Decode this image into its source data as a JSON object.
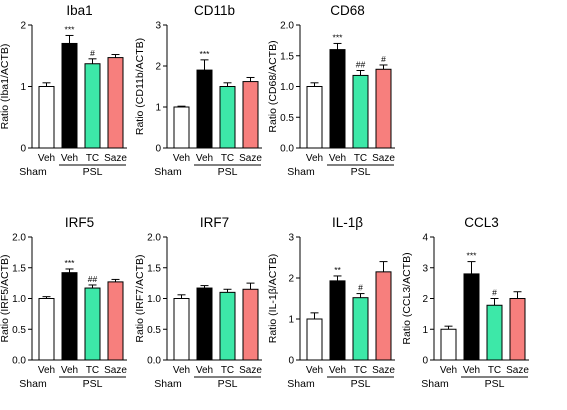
{
  "colors": {
    "Veh_sham": "#ffffff",
    "Veh": "#000000",
    "TC": "#3de8a8",
    "Saze": "#f77f7d",
    "outline": "#000000"
  },
  "chart_data": [
    {
      "type": "bar",
      "title": "Iba1",
      "ylabel": "Ratio (Iba1/ACTB)",
      "categories": [
        "Veh",
        "Veh",
        "TC",
        "Saze"
      ],
      "groups": [
        {
          "label": "Sham",
          "categories": [
            0
          ]
        },
        {
          "label": "PSL",
          "categories": [
            1,
            2,
            3
          ]
        }
      ],
      "values": [
        1.0,
        1.7,
        1.37,
        1.47
      ],
      "errors": [
        0.06,
        0.13,
        0.08,
        0.05
      ],
      "significance": [
        "",
        "***",
        "#",
        ""
      ],
      "ylim": [
        0,
        2
      ],
      "yticks": [
        "0",
        "1",
        "2"
      ],
      "yticks_values": [
        0,
        1,
        2
      ]
    },
    {
      "type": "bar",
      "title": "CD11b",
      "ylabel": "Ratio (CD11b/ACTB)",
      "categories": [
        "Veh",
        "Veh",
        "TC",
        "Saze"
      ],
      "groups": [
        {
          "label": "Sham",
          "categories": [
            0
          ]
        },
        {
          "label": "PSL",
          "categories": [
            1,
            2,
            3
          ]
        }
      ],
      "values": [
        1.0,
        1.9,
        1.5,
        1.62
      ],
      "errors": [
        0.02,
        0.25,
        0.09,
        0.1
      ],
      "significance": [
        "",
        "***",
        "",
        ""
      ],
      "ylim": [
        0,
        3
      ],
      "yticks": [
        "0",
        "1",
        "2",
        "3"
      ],
      "yticks_values": [
        0,
        1,
        2,
        3
      ]
    },
    {
      "type": "bar",
      "title": "CD68",
      "ylabel": "Ratio (CD68/ACTB)",
      "categories": [
        "Veh",
        "Veh",
        "TC",
        "Saze"
      ],
      "groups": [
        {
          "label": "Sham",
          "categories": [
            0
          ]
        },
        {
          "label": "PSL",
          "categories": [
            1,
            2,
            3
          ]
        }
      ],
      "values": [
        1.0,
        1.6,
        1.18,
        1.28
      ],
      "errors": [
        0.06,
        0.1,
        0.08,
        0.07
      ],
      "significance": [
        "",
        "***",
        "##",
        "#"
      ],
      "ylim": [
        0,
        2
      ],
      "yticks": [
        "0.0",
        "0.5",
        "1.0",
        "1.5",
        "2.0"
      ],
      "yticks_values": [
        0,
        0.5,
        1,
        1.5,
        2
      ]
    },
    {
      "type": "bar",
      "title": "IRF5",
      "ylabel": "Ratio (IRF5/ACTB)",
      "categories": [
        "Veh",
        "Veh",
        "TC",
        "Saze"
      ],
      "groups": [
        {
          "label": "Sham",
          "categories": [
            0
          ]
        },
        {
          "label": "PSL",
          "categories": [
            1,
            2,
            3
          ]
        }
      ],
      "values": [
        1.0,
        1.42,
        1.17,
        1.27
      ],
      "errors": [
        0.03,
        0.06,
        0.05,
        0.04
      ],
      "significance": [
        "",
        "***",
        "##",
        ""
      ],
      "ylim": [
        0,
        2
      ],
      "yticks": [
        "0.0",
        "0.5",
        "1.0",
        "1.5",
        "2.0"
      ],
      "yticks_values": [
        0,
        0.5,
        1,
        1.5,
        2
      ]
    },
    {
      "type": "bar",
      "title": "IRF7",
      "ylabel": "Ratio (IRF7/ACTB)",
      "categories": [
        "Veh",
        "Veh",
        "TC",
        "Saze"
      ],
      "groups": [
        {
          "label": "Sham",
          "categories": [
            0
          ]
        },
        {
          "label": "PSL",
          "categories": [
            1,
            2,
            3
          ]
        }
      ],
      "values": [
        1.0,
        1.17,
        1.1,
        1.15
      ],
      "errors": [
        0.06,
        0.04,
        0.05,
        0.1
      ],
      "significance": [
        "",
        "",
        "",
        ""
      ],
      "ylim": [
        0,
        2
      ],
      "yticks": [
        "0.0",
        "0.5",
        "1.0",
        "1.5",
        "2.0"
      ],
      "yticks_values": [
        0,
        0.5,
        1,
        1.5,
        2
      ]
    },
    {
      "type": "bar",
      "title": "IL-1β",
      "ylabel": "Ratio (IL-1β/ACTB)",
      "categories": [
        "Veh",
        "Veh",
        "TC",
        "Saze"
      ],
      "groups": [
        {
          "label": "Sham",
          "categories": [
            0
          ]
        },
        {
          "label": "PSL",
          "categories": [
            1,
            2,
            3
          ]
        }
      ],
      "values": [
        1.0,
        1.93,
        1.52,
        2.15
      ],
      "errors": [
        0.15,
        0.12,
        0.1,
        0.25
      ],
      "significance": [
        "",
        "**",
        "#",
        ""
      ],
      "ylim": [
        0,
        3
      ],
      "yticks": [
        "0",
        "1",
        "2",
        "3"
      ],
      "yticks_values": [
        0,
        1,
        2,
        3
      ]
    },
    {
      "type": "bar",
      "title": "CCL3",
      "ylabel": "Ratio (CCL3/ACTB)",
      "categories": [
        "Veh",
        "Veh",
        "TC",
        "Saze"
      ],
      "groups": [
        {
          "label": "Sham",
          "categories": [
            0
          ]
        },
        {
          "label": "PSL",
          "categories": [
            1,
            2,
            3
          ]
        }
      ],
      "values": [
        1.0,
        2.8,
        1.78,
        2.0
      ],
      "errors": [
        0.1,
        0.4,
        0.22,
        0.22
      ],
      "significance": [
        "",
        "***",
        "#",
        ""
      ],
      "ylim": [
        0,
        4
      ],
      "yticks": [
        "0",
        "1",
        "2",
        "3",
        "4"
      ],
      "yticks_values": [
        0,
        1,
        2,
        3,
        4
      ]
    }
  ]
}
